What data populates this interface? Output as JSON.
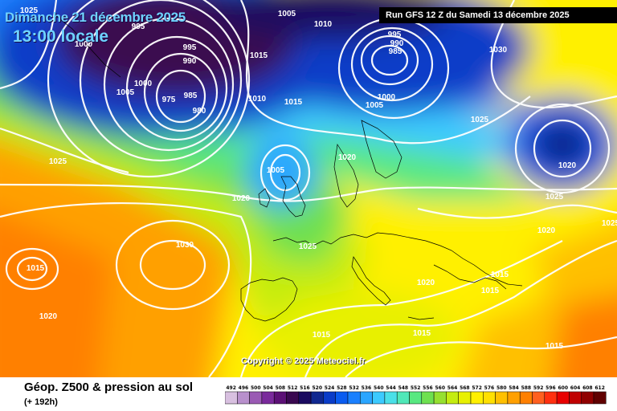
{
  "title": {
    "date": "Dimanche 21 décembre 2025",
    "time": "13:00 locale"
  },
  "run_info": "Run GFS 12 Z du Samedi 13 décembre 2025",
  "product": {
    "name": "Géop. Z500 & pression au sol",
    "lead_time": "(+ 192h)"
  },
  "copyright": "Copyright © 2025 Meteociel.fr",
  "color_scale": {
    "labels": [
      "492",
      "496",
      "500",
      "504",
      "508",
      "512",
      "516",
      "520",
      "524",
      "528",
      "532",
      "536",
      "540",
      "544",
      "548",
      "552",
      "556",
      "560",
      "564",
      "568",
      "572",
      "576",
      "580",
      "584",
      "588",
      "592",
      "596",
      "600",
      "604",
      "608",
      "612"
    ],
    "colors": [
      "#d8c0e0",
      "#b890cc",
      "#9a5ab4",
      "#7a2a9c",
      "#5c1076",
      "#3a0850",
      "#1a0a60",
      "#102890",
      "#0a3cc8",
      "#0a5cf0",
      "#1a80ff",
      "#2aa6ff",
      "#3ccaff",
      "#4ae0e8",
      "#50e8b8",
      "#58e880",
      "#6ee050",
      "#96e030",
      "#c4ec10",
      "#e8f000",
      "#fff000",
      "#ffe000",
      "#ffc000",
      "#ffa000",
      "#ff8000",
      "#ff6020",
      "#ff3010",
      "#e80000",
      "#c00000",
      "#900000",
      "#600000"
    ]
  },
  "pressure_labels": [
    {
      "text": "1025"
    },
    {
      "text": "995"
    },
    {
      "text": "1000"
    },
    {
      "text": "995"
    },
    {
      "text": "990"
    },
    {
      "text": "1005"
    },
    {
      "text": "1000"
    },
    {
      "text": "975"
    },
    {
      "text": "985"
    },
    {
      "text": "980"
    },
    {
      "text": "1005"
    },
    {
      "text": "1010"
    },
    {
      "text": "1015"
    },
    {
      "text": "1010"
    },
    {
      "text": "1015"
    },
    {
      "text": "995"
    },
    {
      "text": "990"
    },
    {
      "text": "985"
    },
    {
      "text": "1000"
    },
    {
      "text": "1005"
    },
    {
      "text": "1030"
    },
    {
      "text": "1025"
    },
    {
      "text": "1020"
    },
    {
      "text": "1025"
    },
    {
      "text": "1020"
    },
    {
      "text": "1005"
    },
    {
      "text": "1020"
    },
    {
      "text": "1025"
    },
    {
      "text": "1025"
    },
    {
      "text": "1030"
    },
    {
      "text": "1015"
    },
    {
      "text": "1025"
    },
    {
      "text": "1020"
    },
    {
      "text": "1020"
    },
    {
      "text": "1015"
    },
    {
      "text": "1015"
    },
    {
      "text": "1015"
    },
    {
      "text": "1015"
    },
    {
      "text": "1020"
    },
    {
      "text": "1015"
    }
  ]
}
